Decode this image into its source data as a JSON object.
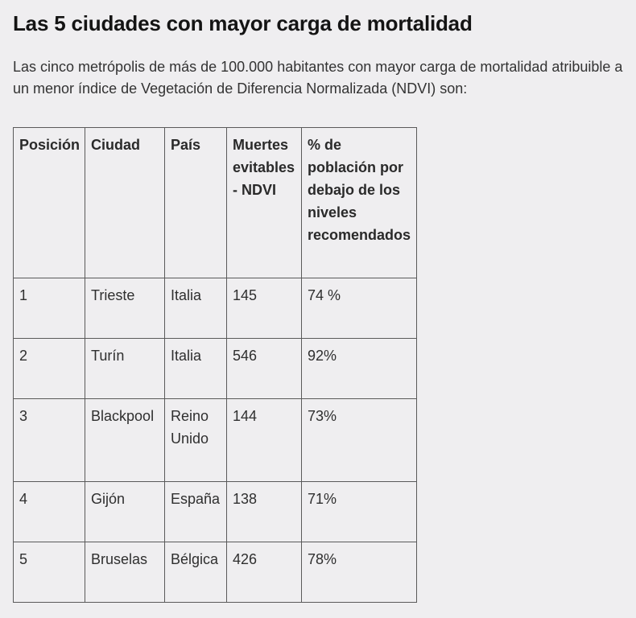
{
  "article": {
    "title": "Las 5 ciudades con mayor carga de mortalidad",
    "intro": "Las cinco metrópolis de más de 100.000 habitantes con mayor carga de mortalidad atribuible a un menor índice de Vegetación de Diferencia Normalizada (NDVI) son:"
  },
  "table": {
    "headers": [
      "Posición",
      "Ciudad",
      "País",
      "Muertes evitables - NDVI",
      "% de población por debajo de los niveles recomendados"
    ],
    "rows": [
      [
        "1",
        "Trieste",
        "Italia",
        "145",
        "74 %"
      ],
      [
        "2",
        "Turín",
        "Italia",
        "546",
        "92%"
      ],
      [
        "3",
        "Blackpool",
        "Reino Unido",
        "144",
        "73%"
      ],
      [
        "4",
        "Gijón",
        "España",
        "138",
        "71%"
      ],
      [
        "5",
        "Bruselas",
        "Bélgica",
        "426",
        "78%"
      ]
    ]
  }
}
